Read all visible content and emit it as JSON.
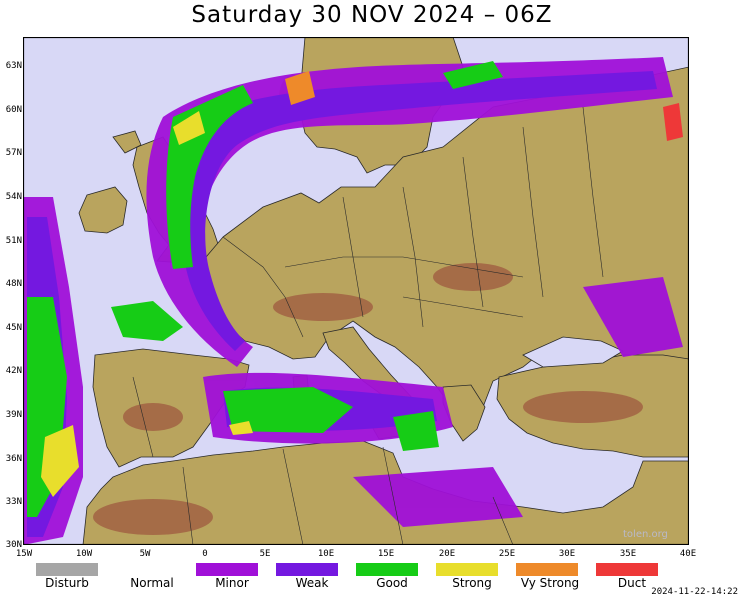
{
  "title": "Saturday 30 NOV 2024 – 06Z",
  "lat_labels": [
    "63N",
    "60N",
    "57N",
    "54N",
    "51N",
    "48N",
    "45N",
    "42N",
    "39N",
    "36N",
    "33N",
    "30N"
  ],
  "lon_labels": [
    "15W",
    "10W",
    "5W",
    "0",
    "5E",
    "10E",
    "15E",
    "20E",
    "25E",
    "30E",
    "35E",
    "40E"
  ],
  "legend": [
    {
      "label": "Disturb",
      "color": "#a6a6a6"
    },
    {
      "label": "Normal",
      "color": "#ffffff"
    },
    {
      "label": "Minor",
      "color": "#a010d8"
    },
    {
      "label": "Weak",
      "color": "#7418e0"
    },
    {
      "label": "Good",
      "color": "#16cc16"
    },
    {
      "label": "Strong",
      "color": "#e8de2c"
    },
    {
      "label": "Vy Strong",
      "color": "#ee8a2a"
    },
    {
      "label": "Duct",
      "color": "#ee3838"
    }
  ],
  "timestamp": "2024-11-22-14:22",
  "watermark": "tolen.org",
  "colors": {
    "sea": "#d8d8f6",
    "land": "#b9a45e",
    "highland": "#9f5a40"
  }
}
